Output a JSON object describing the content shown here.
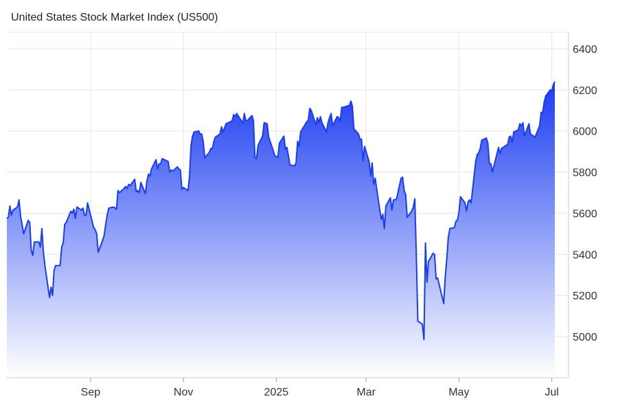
{
  "chart_data": {
    "type": "area",
    "title": "United States Stock Market Index (US500)",
    "xlabel": "",
    "ylabel": "",
    "x_ticks": [
      "Sep",
      "Nov",
      "2025",
      "Mar",
      "May",
      "Jul"
    ],
    "y_ticks": [
      5000,
      5200,
      5400,
      5600,
      5800,
      6000,
      6200,
      6400
    ],
    "ylim": [
      4800,
      6480
    ],
    "grid": true,
    "legend": "none",
    "colors": {
      "line": "#1a3cf0",
      "fill_top": "#1a3cf0",
      "fill_bottom": "#ffffff",
      "grid": "#e6e6e6",
      "axis": "#cccccc",
      "text": "#222222"
    },
    "x": [
      "2024-07-08",
      "2024-07-09",
      "2024-07-10",
      "2024-07-11",
      "2024-07-12",
      "2024-07-15",
      "2024-07-16",
      "2024-07-17",
      "2024-07-18",
      "2024-07-19",
      "2024-07-22",
      "2024-07-23",
      "2024-07-24",
      "2024-07-25",
      "2024-07-26",
      "2024-07-29",
      "2024-07-30",
      "2024-07-31",
      "2024-08-01",
      "2024-08-02",
      "2024-08-05",
      "2024-08-06",
      "2024-08-07",
      "2024-08-08",
      "2024-08-09",
      "2024-08-12",
      "2024-08-13",
      "2024-08-14",
      "2024-08-15",
      "2024-08-16",
      "2024-08-19",
      "2024-08-20",
      "2024-08-21",
      "2024-08-22",
      "2024-08-23",
      "2024-08-26",
      "2024-08-27",
      "2024-08-28",
      "2024-08-29",
      "2024-08-30",
      "2024-09-03",
      "2024-09-04",
      "2024-09-05",
      "2024-09-06",
      "2024-09-09",
      "2024-09-10",
      "2024-09-11",
      "2024-09-12",
      "2024-09-13",
      "2024-09-16",
      "2024-09-17",
      "2024-09-18",
      "2024-09-19",
      "2024-09-20",
      "2024-09-23",
      "2024-09-24",
      "2024-09-25",
      "2024-09-26",
      "2024-09-27",
      "2024-09-30",
      "2024-10-01",
      "2024-10-02",
      "2024-10-03",
      "2024-10-04",
      "2024-10-07",
      "2024-10-08",
      "2024-10-09",
      "2024-10-10",
      "2024-10-11",
      "2024-10-14",
      "2024-10-15",
      "2024-10-16",
      "2024-10-17",
      "2024-10-18",
      "2024-10-21",
      "2024-10-22",
      "2024-10-23",
      "2024-10-24",
      "2024-10-25",
      "2024-10-28",
      "2024-10-29",
      "2024-10-30",
      "2024-10-31",
      "2024-11-01",
      "2024-11-04",
      "2024-11-05",
      "2024-11-06",
      "2024-11-07",
      "2024-11-08",
      "2024-11-11",
      "2024-11-12",
      "2024-11-13",
      "2024-11-14",
      "2024-11-15",
      "2024-11-18",
      "2024-11-19",
      "2024-11-20",
      "2024-11-21",
      "2024-11-22",
      "2024-11-25",
      "2024-11-26",
      "2024-11-27",
      "2024-11-29",
      "2024-12-02",
      "2024-12-03",
      "2024-12-04",
      "2024-12-05",
      "2024-12-06",
      "2024-12-09",
      "2024-12-10",
      "2024-12-11",
      "2024-12-12",
      "2024-12-13",
      "2024-12-16",
      "2024-12-17",
      "2024-12-18",
      "2024-12-19",
      "2024-12-20",
      "2024-12-23",
      "2024-12-24",
      "2024-12-26",
      "2024-12-27",
      "2024-12-30",
      "2024-12-31",
      "2025-01-02",
      "2025-01-03",
      "2025-01-06",
      "2025-01-07",
      "2025-01-08",
      "2025-01-10",
      "2025-01-13",
      "2025-01-14",
      "2025-01-15",
      "2025-01-16",
      "2025-01-17",
      "2025-01-21",
      "2025-01-22",
      "2025-01-23",
      "2025-01-24",
      "2025-01-27",
      "2025-01-28",
      "2025-01-29",
      "2025-01-30",
      "2025-01-31",
      "2025-02-03",
      "2025-02-04",
      "2025-02-05",
      "2025-02-06",
      "2025-02-07",
      "2025-02-10",
      "2025-02-11",
      "2025-02-12",
      "2025-02-13",
      "2025-02-14",
      "2025-02-18",
      "2025-02-19",
      "2025-02-20",
      "2025-02-21",
      "2025-02-24",
      "2025-02-25",
      "2025-02-26",
      "2025-02-27",
      "2025-02-28",
      "2025-03-03",
      "2025-03-04",
      "2025-03-05",
      "2025-03-06",
      "2025-03-07",
      "2025-03-10",
      "2025-03-11",
      "2025-03-12",
      "2025-03-13",
      "2025-03-14",
      "2025-03-17",
      "2025-03-18",
      "2025-03-19",
      "2025-03-20",
      "2025-03-21",
      "2025-03-24",
      "2025-03-25",
      "2025-03-26",
      "2025-03-27",
      "2025-03-28",
      "2025-03-31",
      "2025-04-01",
      "2025-04-02",
      "2025-04-03",
      "2025-04-04",
      "2025-04-07",
      "2025-04-08",
      "2025-04-09",
      "2025-04-10",
      "2025-04-11",
      "2025-04-14",
      "2025-04-15",
      "2025-04-16",
      "2025-04-17",
      "2025-04-21",
      "2025-04-22",
      "2025-04-23",
      "2025-04-24",
      "2025-04-25",
      "2025-04-28",
      "2025-04-29",
      "2025-04-30",
      "2025-05-01",
      "2025-05-02",
      "2025-05-05",
      "2025-05-06",
      "2025-05-07",
      "2025-05-08",
      "2025-05-09",
      "2025-05-12",
      "2025-05-13",
      "2025-05-14",
      "2025-05-15",
      "2025-05-16",
      "2025-05-19",
      "2025-05-20",
      "2025-05-21",
      "2025-05-22",
      "2025-05-23",
      "2025-05-27",
      "2025-05-28",
      "2025-05-29",
      "2025-05-30",
      "2025-06-02",
      "2025-06-03",
      "2025-06-04",
      "2025-06-05",
      "2025-06-06",
      "2025-06-09",
      "2025-06-10",
      "2025-06-11",
      "2025-06-12",
      "2025-06-13",
      "2025-06-16",
      "2025-06-17",
      "2025-06-18",
      "2025-06-20",
      "2025-06-23",
      "2025-06-24",
      "2025-06-25",
      "2025-06-26",
      "2025-06-27",
      "2025-06-30",
      "2025-07-01",
      "2025-07-02",
      "2025-07-03"
    ],
    "values": [
      5575,
      5580,
      5635,
      5590,
      5615,
      5630,
      5665,
      5585,
      5545,
      5500,
      5565,
      5555,
      5420,
      5395,
      5460,
      5460,
      5435,
      5525,
      5410,
      5345,
      5190,
      5240,
      5200,
      5320,
      5345,
      5345,
      5435,
      5455,
      5545,
      5555,
      5610,
      5600,
      5620,
      5575,
      5630,
      5615,
      5625,
      5590,
      5590,
      5650,
      5530,
      5520,
      5500,
      5410,
      5470,
      5495,
      5550,
      5595,
      5625,
      5630,
      5625,
      5620,
      5710,
      5700,
      5720,
      5730,
      5720,
      5740,
      5735,
      5765,
      5705,
      5710,
      5700,
      5750,
      5695,
      5755,
      5790,
      5780,
      5815,
      5860,
      5815,
      5840,
      5840,
      5865,
      5855,
      5850,
      5800,
      5810,
      5805,
      5825,
      5815,
      5810,
      5715,
      5725,
      5710,
      5780,
      5930,
      5975,
      5995,
      6000,
      5985,
      5985,
      5950,
      5870,
      5895,
      5915,
      5915,
      5950,
      5970,
      5985,
      6020,
      5995,
      6035,
      6045,
      6050,
      6080,
      6070,
      6085,
      6050,
      6035,
      6085,
      6050,
      6050,
      6075,
      6050,
      5870,
      5865,
      5930,
      5975,
      6040,
      6035,
      5970,
      5905,
      5880,
      5870,
      5940,
      5975,
      5910,
      5920,
      5835,
      5830,
      5845,
      5950,
      5925,
      5995,
      6045,
      6050,
      6110,
      6100,
      6030,
      6065,
      6040,
      6070,
      6040,
      5995,
      6040,
      6065,
      6085,
      6025,
      6070,
      6065,
      6050,
      6115,
      6115,
      6125,
      6145,
      6120,
      6010,
      5985,
      5960,
      5960,
      5855,
      5925,
      5850,
      5780,
      5845,
      5740,
      5770,
      5615,
      5570,
      5595,
      5525,
      5635,
      5675,
      5615,
      5665,
      5665,
      5670,
      5770,
      5775,
      5710,
      5690,
      5580,
      5610,
      5630,
      5670,
      5395,
      5075,
      5060,
      4985,
      5455,
      5265,
      5365,
      5405,
      5400,
      5280,
      5285,
      5160,
      5290,
      5375,
      5480,
      5525,
      5530,
      5560,
      5565,
      5605,
      5680,
      5650,
      5610,
      5655,
      5665,
      5650,
      5850,
      5885,
      5895,
      5915,
      5955,
      5965,
      5940,
      5840,
      5840,
      5800,
      5920,
      5890,
      5915,
      5920,
      5935,
      5970,
      5975,
      5945,
      5995,
      6005,
      6035,
      6025,
      6040,
      5975,
      6035,
      5985,
      5980,
      5970,
      6025,
      6090,
      6090,
      6140,
      6170,
      6200,
      6195,
      6225,
      6240
    ]
  }
}
